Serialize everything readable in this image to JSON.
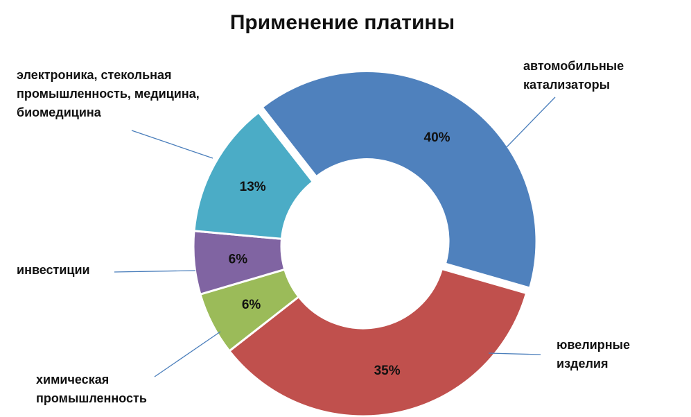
{
  "chart_data": {
    "type": "pie",
    "title": "Применение платины",
    "slices": [
      {
        "label": "автомобильные катализаторы",
        "value": 40,
        "value_label": "40%",
        "color": "#4f81bd"
      },
      {
        "label": "ювелирные изделия",
        "value": 35,
        "value_label": "35%",
        "color": "#c0504d"
      },
      {
        "label": "химическая промышленность",
        "value": 6,
        "value_label": "6%",
        "color": "#9bbb59"
      },
      {
        "label": "инвестиции",
        "value": 6,
        "value_label": "6%",
        "color": "#8064a2"
      },
      {
        "label": "электроника, стекольная промышленность, медицина, биомедицина",
        "value": 13,
        "value_label": "13%",
        "color": "#4bacc6"
      }
    ]
  }
}
